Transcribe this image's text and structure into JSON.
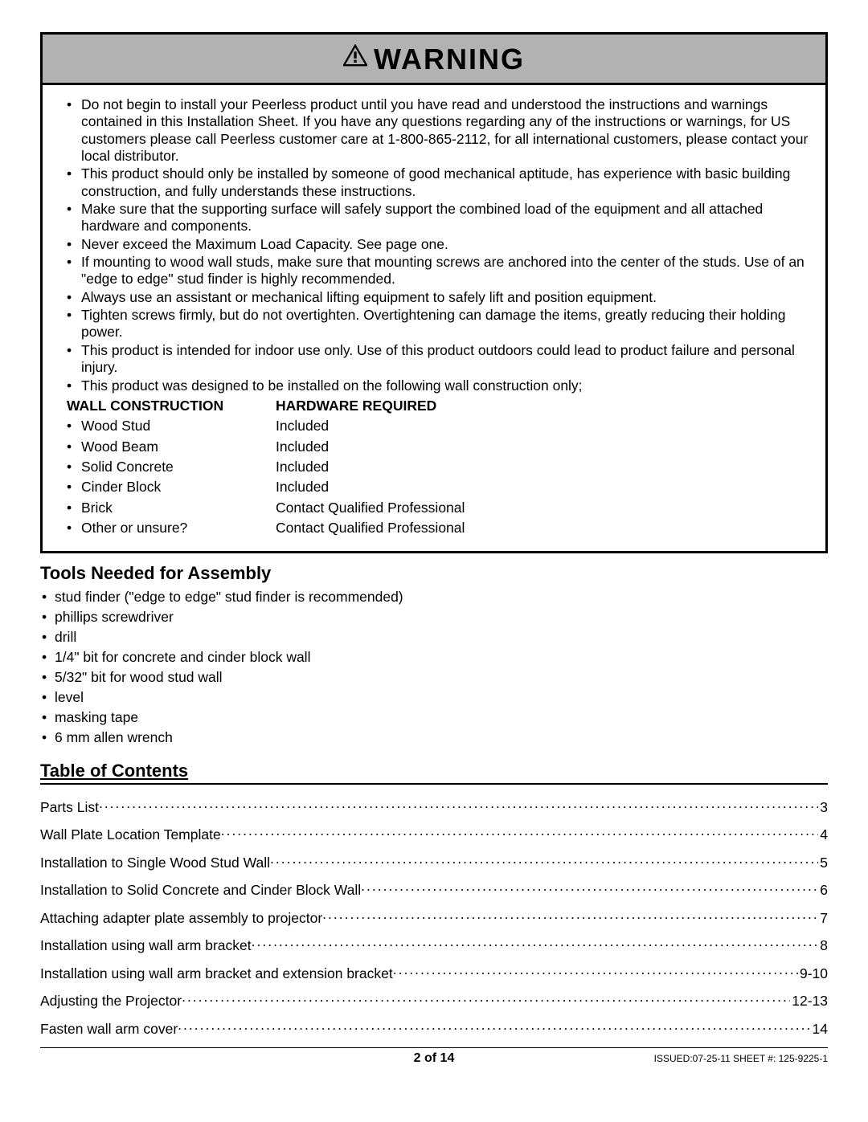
{
  "warning": {
    "title": "WARNING",
    "items": [
      "Do not begin to install your Peerless product until you have read and understood the instructions and warnings contained in this Installation Sheet. If you have any questions regarding any of the instructions or warnings, for US customers please call Peerless customer care at 1-800-865-2112, for all international customers, please contact your local distributor.",
      "This product should only be installed by someone of good mechanical aptitude, has experience with basic building construction, and fully understands these instructions.",
      "Make sure that the supporting surface will safely support the combined load of the equipment and all attached hardware and components.",
      "Never exceed the Maximum Load Capacity. See page one.",
      "If mounting to wood wall studs, make sure that mounting screws are anchored into the center of the studs. Use of an \"edge to edge\" stud finder is highly recommended.",
      "Always use an assistant or mechanical lifting equipment to safely lift and position equipment.",
      "Tighten screws firmly, but do not overtighten. Overtightening can damage the items, greatly reducing their holding power.",
      "This product is intended for indoor use only. Use of this product outdoors could lead to product failure and personal injury.",
      "This product was designed to be installed on the following wall construction only;"
    ],
    "wallTable": {
      "header1": "WALL CONSTRUCTION",
      "header2": "HARDWARE REQUIRED",
      "rows": [
        {
          "wc": "Wood Stud",
          "hr": "Included"
        },
        {
          "wc": "Wood Beam",
          "hr": "Included"
        },
        {
          "wc": "Solid Concrete",
          "hr": "Included"
        },
        {
          "wc": "Cinder Block",
          "hr": "Included"
        },
        {
          "wc": "Brick",
          "hr": "Contact Qualified Professional"
        },
        {
          "wc": "Other or unsure?",
          "hr": "Contact Qualified Professional"
        }
      ]
    }
  },
  "tools": {
    "heading": "Tools Needed for Assembly",
    "items": [
      "stud finder (\"edge to edge\" stud finder is recommended)",
      "phillips screwdriver",
      "drill",
      "1/4\" bit for concrete and cinder block wall",
      "5/32\" bit for wood stud wall",
      "level",
      "masking tape",
      "6 mm allen wrench"
    ]
  },
  "toc": {
    "heading": "Table of Contents",
    "entries": [
      {
        "title": "Parts List",
        "page": "3"
      },
      {
        "title": "Wall Plate Location Template ",
        "page": "4"
      },
      {
        "title": "Installation to Single Wood Stud Wall",
        "page": "5"
      },
      {
        "title": "Installation to Solid Concrete and Cinder Block Wall ",
        "page": "6"
      },
      {
        "title": "Attaching adapter plate assembly to projector ",
        "page": "7"
      },
      {
        "title": "Installation using wall arm bracket ",
        "page": "8"
      },
      {
        "title": "Installation using wall arm bracket and extension bracket ",
        "page": " 9-10"
      },
      {
        "title": "Adjusting the Projector ",
        "page": " 12-13"
      },
      {
        "title": "Fasten wall arm cover ",
        "page": " 14"
      }
    ]
  },
  "footer": {
    "pageLabel": "2 of 14",
    "issued": "ISSUED:07-25-11 SHEET #: 125-9225-1"
  }
}
